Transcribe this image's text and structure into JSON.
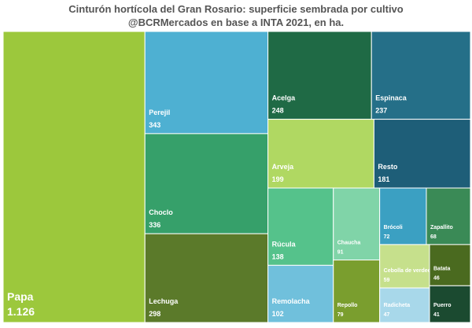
{
  "chart_data": {
    "type": "treemap",
    "title": "Cinturón hortícola del Gran Rosario: superficie sembrada por cultivo",
    "subtitle": "@BCRMercados en base a INTA 2021, en ha.",
    "categories": [
      "Papa",
      "Perejil",
      "Choclo",
      "Lechuga",
      "Acelga",
      "Espinaca",
      "Arveja",
      "Resto",
      "Rúcula",
      "Remolacha",
      "Chaucha",
      "Repollo",
      "Brócoli",
      "Zapallito",
      "Cebolla de verdeo",
      "Radicheta",
      "Batata",
      "Puerro"
    ],
    "values": [
      1126,
      343,
      336,
      298,
      248,
      237,
      199,
      181,
      138,
      102,
      91,
      79,
      72,
      68,
      59,
      47,
      46,
      41
    ],
    "value_labels": [
      "1.126",
      "343",
      "336",
      "298",
      "248",
      "237",
      "199",
      "181",
      "138",
      "102",
      "91",
      "79",
      "72",
      "68",
      "59",
      "47",
      "46",
      "41"
    ],
    "colors": [
      "#9cc83c",
      "#4eb0d2",
      "#36a06a",
      "#5b7a2a",
      "#1f6a45",
      "#256f88",
      "#b0d862",
      "#1e5e78",
      "#55c28b",
      "#70c0dc",
      "#80d4a8",
      "#7a9e2e",
      "#3ba0c2",
      "#3a8a56",
      "#c6e08c",
      "#a8d8ea",
      "#4a6a1f",
      "#1b4a30"
    ]
  }
}
